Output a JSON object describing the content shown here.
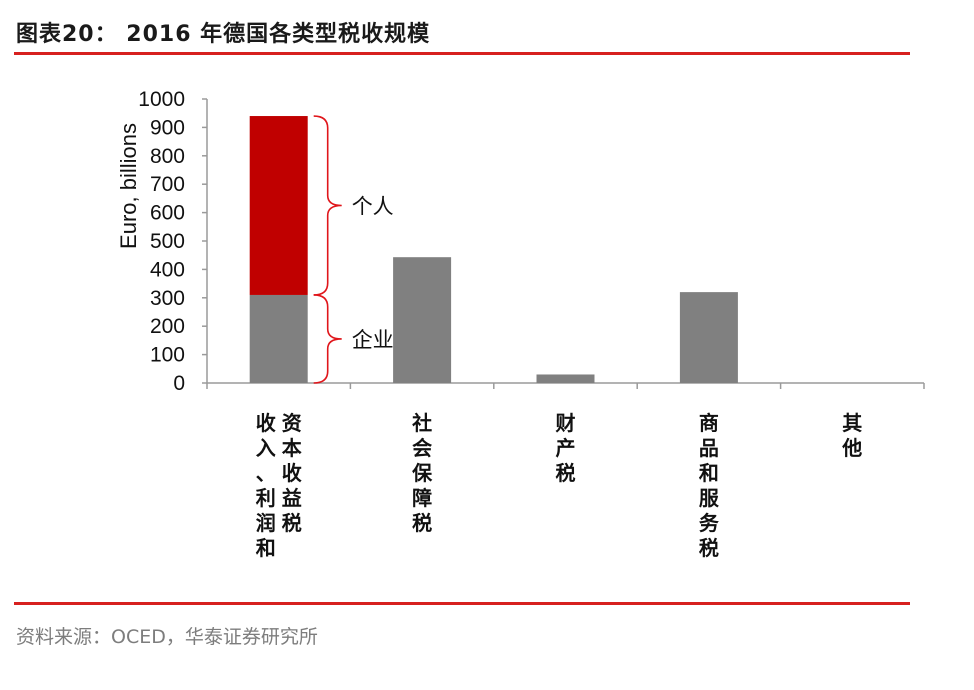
{
  "header": {
    "figure_title": "图表20： 2016 年德国各类型税收规模"
  },
  "footer": {
    "source": "资料来源：OCED，华泰证券研究所"
  },
  "colors": {
    "accent_red": "#d7201f",
    "bar_gray": "#808080",
    "bar_red": "#c00000",
    "brace_red": "#e0161b"
  },
  "chart_data": {
    "type": "bar",
    "ylabel": "Euro, billions",
    "ylim": [
      0,
      1000
    ],
    "yticks": [
      0,
      100,
      200,
      300,
      400,
      500,
      600,
      700,
      800,
      900,
      1000
    ],
    "categories": [
      "收入、利润和资本收益税",
      "社会保障税",
      "财产税",
      "商品和服务税",
      "其他"
    ],
    "category_lines": [
      [
        "收入、利润和",
        "资本收益税"
      ],
      [
        "社会保障税"
      ],
      [
        "财产税"
      ],
      [
        "商品和服务税"
      ],
      [
        "其他"
      ]
    ],
    "series": [
      {
        "name": "企业",
        "values": [
          310,
          443,
          30,
          320,
          0
        ]
      },
      {
        "name": "个人",
        "values": [
          630,
          0,
          0,
          0,
          0
        ]
      }
    ],
    "annotations": [
      {
        "text": "个人",
        "range": [
          310,
          940
        ]
      },
      {
        "text": "企业",
        "range": [
          0,
          310
        ]
      }
    ],
    "grid": false,
    "legend": "none"
  }
}
